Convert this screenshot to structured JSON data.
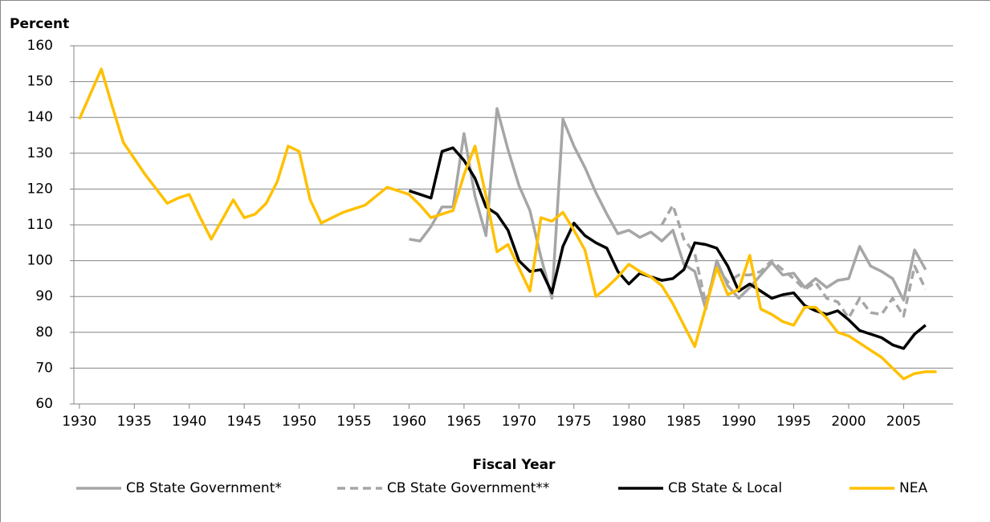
{
  "chart_data": {
    "type": "line",
    "y_label": "Percent",
    "x_label": "Fiscal Year",
    "x": [
      1930,
      1931,
      1932,
      1933,
      1934,
      1935,
      1936,
      1937,
      1938,
      1939,
      1940,
      1941,
      1942,
      1943,
      1944,
      1945,
      1946,
      1947,
      1948,
      1949,
      1950,
      1951,
      1952,
      1953,
      1954,
      1955,
      1956,
      1957,
      1958,
      1959,
      1960,
      1961,
      1962,
      1963,
      1964,
      1965,
      1966,
      1967,
      1968,
      1969,
      1970,
      1971,
      1972,
      1973,
      1974,
      1975,
      1976,
      1977,
      1978,
      1979,
      1980,
      1981,
      1982,
      1983,
      1984,
      1985,
      1986,
      1987,
      1988,
      1989,
      1990,
      1991,
      1992,
      1993,
      1994,
      1995,
      1996,
      1997,
      1998,
      1999,
      2000,
      2001,
      2002,
      2003,
      2004,
      2005,
      2006,
      2007,
      2008
    ],
    "xlim": [
      1929.5,
      2009.5
    ],
    "xticks": [
      1930,
      1935,
      1940,
      1945,
      1950,
      1955,
      1960,
      1965,
      1970,
      1975,
      1980,
      1985,
      1990,
      1995,
      2000,
      2005
    ],
    "ylim": [
      60,
      160
    ],
    "yticks": [
      60,
      70,
      80,
      90,
      100,
      110,
      120,
      130,
      140,
      150,
      160
    ],
    "grid": true,
    "legend": "bottom",
    "series": [
      {
        "name": "CB State Government*",
        "color": "#a6a6a6",
        "dash": false,
        "values": [
          null,
          null,
          null,
          null,
          null,
          null,
          null,
          null,
          null,
          null,
          null,
          null,
          null,
          null,
          null,
          null,
          null,
          null,
          null,
          null,
          null,
          null,
          null,
          null,
          null,
          null,
          null,
          null,
          null,
          null,
          106,
          105.5,
          109.5,
          115,
          115,
          135.5,
          118,
          107,
          142.5,
          131,
          121,
          114,
          101,
          89.5,
          139.5,
          132,
          126,
          119,
          113,
          107.5,
          108.5,
          106.5,
          108,
          105.5,
          108.5,
          99,
          97,
          86.5,
          100,
          93,
          89.5,
          92.5,
          96,
          99.5,
          96,
          96.5,
          92.5,
          95,
          92.5,
          94.5,
          95,
          104,
          98.5,
          97,
          95,
          89,
          103,
          97.5,
          null
        ]
      },
      {
        "name": "CB State Government**",
        "color": "#a6a6a6",
        "dash": true,
        "values": [
          null,
          null,
          null,
          null,
          null,
          null,
          null,
          null,
          null,
          null,
          null,
          null,
          null,
          null,
          null,
          null,
          null,
          null,
          null,
          null,
          null,
          null,
          null,
          null,
          null,
          null,
          null,
          null,
          null,
          null,
          null,
          null,
          null,
          null,
          null,
          null,
          null,
          null,
          null,
          null,
          null,
          null,
          null,
          null,
          null,
          null,
          null,
          null,
          null,
          null,
          null,
          null,
          null,
          110,
          115.5,
          106,
          102,
          88,
          98.5,
          94,
          96,
          96,
          97,
          100,
          97.5,
          95,
          92,
          94,
          89.5,
          88.5,
          84,
          89.5,
          85.5,
          85,
          89.5,
          84.5,
          98.5,
          92,
          null
        ]
      },
      {
        "name": "CB State & Local",
        "color": "#000000",
        "dash": false,
        "values": [
          null,
          null,
          null,
          null,
          null,
          null,
          null,
          null,
          null,
          null,
          null,
          null,
          null,
          null,
          null,
          null,
          null,
          null,
          null,
          null,
          null,
          null,
          null,
          null,
          null,
          null,
          null,
          null,
          null,
          null,
          119.5,
          118.5,
          117.5,
          130.5,
          131.5,
          128,
          123,
          115,
          113,
          108.5,
          100,
          97,
          97.5,
          91,
          104,
          110.5,
          107,
          105,
          103.5,
          97,
          93.5,
          96.5,
          95.5,
          94.5,
          95,
          97.5,
          105,
          104.5,
          103.5,
          98.5,
          91.5,
          93.5,
          91.5,
          89.5,
          90.5,
          91,
          87.5,
          86,
          85,
          86,
          83.5,
          80.5,
          79.5,
          78.5,
          76.5,
          75.5,
          79.5,
          82,
          null
        ]
      },
      {
        "name": "NEA",
        "color": "#ffc000",
        "dash": false,
        "values": [
          139.5,
          146.5,
          153.5,
          143,
          133,
          128.5,
          124,
          120,
          116,
          117.5,
          118.5,
          112,
          106,
          111.5,
          117,
          112,
          113,
          116,
          122,
          132,
          130.5,
          117,
          110.5,
          112,
          113.5,
          114.5,
          115.5,
          118,
          120.5,
          119.5,
          118.5,
          115.5,
          112,
          113,
          114,
          124,
          132,
          118,
          102.5,
          104.5,
          98,
          91.5,
          112,
          111,
          113.5,
          108.5,
          103,
          90,
          92.5,
          95.5,
          99,
          97,
          95.5,
          93,
          88,
          82,
          76,
          87,
          98,
          90.5,
          92,
          101.5,
          86.5,
          85,
          83,
          82,
          87,
          87,
          84,
          80,
          79,
          77,
          75,
          73,
          70,
          67,
          68.5,
          69,
          69
        ]
      }
    ]
  }
}
